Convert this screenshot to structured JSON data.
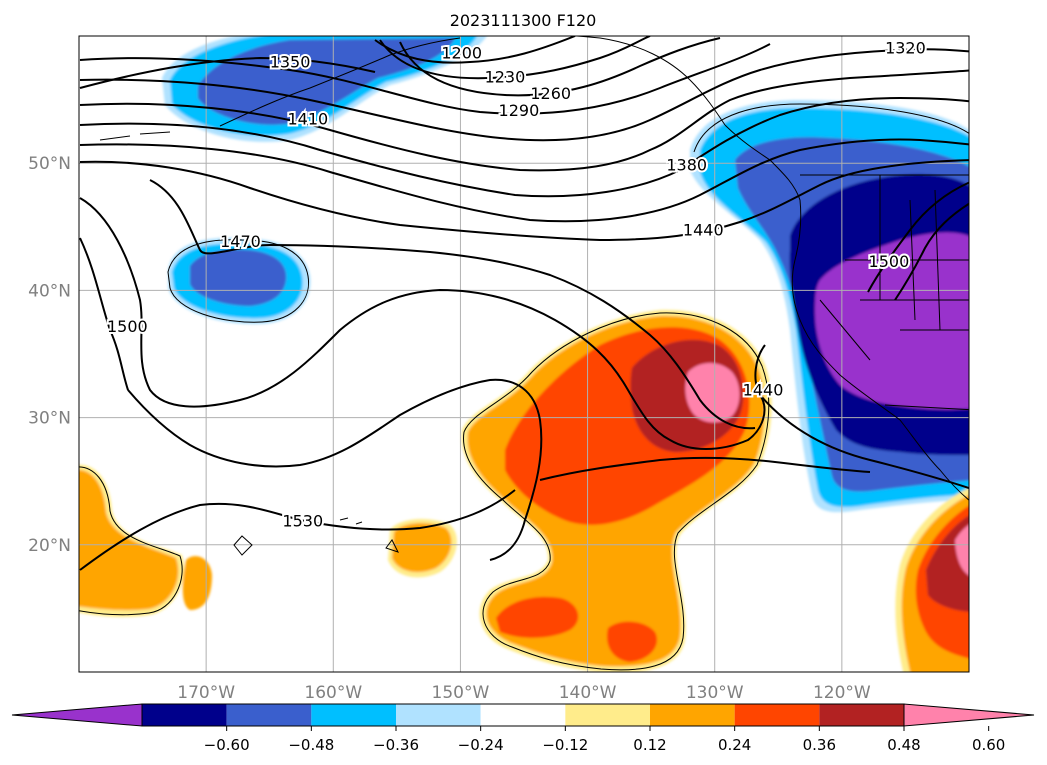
{
  "title": "2023111300 F120",
  "map": {
    "lon_range": [
      -180,
      -110
    ],
    "lat_range": [
      10,
      60
    ],
    "lat_ticks": [
      {
        "value": 20,
        "label": "20°N"
      },
      {
        "value": 30,
        "label": "30°N"
      },
      {
        "value": 40,
        "label": "40°N"
      },
      {
        "value": 50,
        "label": "50°N"
      }
    ],
    "lon_ticks": [
      {
        "value": -170,
        "label": "170°W"
      },
      {
        "value": -160,
        "label": "160°W"
      },
      {
        "value": -150,
        "label": "150°W"
      },
      {
        "value": -140,
        "label": "140°W"
      },
      {
        "value": -130,
        "label": "130°W"
      },
      {
        "value": -120,
        "label": "120°W"
      }
    ],
    "grid": true,
    "tick_label_color": "#808080"
  },
  "contour_labels": [
    {
      "text": "1200",
      "lon": -149.9,
      "lat": 58.7
    },
    {
      "text": "1230",
      "lon": -146.5,
      "lat": 56.8
    },
    {
      "text": "1260",
      "lon": -142.9,
      "lat": 55.5
    },
    {
      "text": "1290",
      "lon": -145.4,
      "lat": 54.2
    },
    {
      "text": "1320",
      "lon": -115.0,
      "lat": 59.1
    },
    {
      "text": "1350",
      "lon": -163.4,
      "lat": 58.0
    },
    {
      "text": "1380",
      "lon": -132.2,
      "lat": 49.9
    },
    {
      "text": "1410",
      "lon": -162.0,
      "lat": 53.5
    },
    {
      "text": "1440",
      "lon": -130.9,
      "lat": 44.8
    },
    {
      "text": "1440",
      "lon": -126.2,
      "lat": 32.2
    },
    {
      "text": "1470",
      "lon": -167.3,
      "lat": 43.9
    },
    {
      "text": "1500",
      "lon": -176.2,
      "lat": 37.2
    },
    {
      "text": "1500",
      "lon": -116.3,
      "lat": 42.3
    },
    {
      "text": "1530",
      "lon": -162.4,
      "lat": 21.9
    }
  ],
  "colorbar": {
    "ticks": [
      "−0.60",
      "−0.48",
      "−0.36",
      "−0.24",
      "−0.12",
      "0.12",
      "0.24",
      "0.36",
      "0.48",
      "0.60"
    ],
    "colors": [
      "#9932cc",
      "#00008b",
      "#3a5fcd",
      "#00bfff",
      "#b0e2ff",
      "#ffffff",
      "#ffec8b",
      "#ffa500",
      "#ff4500",
      "#b22222",
      "#ff82ab"
    ]
  }
}
